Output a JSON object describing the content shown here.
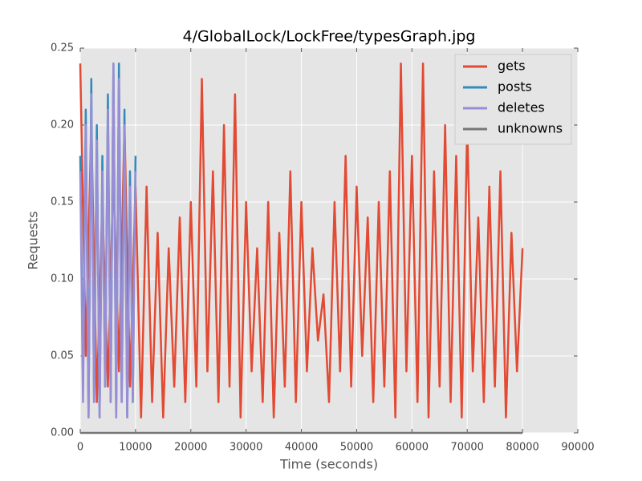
{
  "chart_data": {
    "type": "line",
    "title": "4/GlobalLock/LockFree/typesGraph.jpg",
    "x_label": "Time (seconds)",
    "y_label": "Requests",
    "xlim": [
      0,
      90000
    ],
    "ylim": [
      0,
      0.25
    ],
    "xticks": [
      0,
      10000,
      20000,
      30000,
      40000,
      50000,
      60000,
      70000,
      80000,
      90000
    ],
    "yticks": [
      {
        "value": 0,
        "label": "0.00"
      },
      {
        "value": 0.05,
        "label": "0.05"
      },
      {
        "value": 0.1,
        "label": "0.10"
      },
      {
        "value": 0.15,
        "label": "0.15"
      },
      {
        "value": 0.2,
        "label": "0.20"
      },
      {
        "value": 0.25,
        "label": "0.25"
      }
    ],
    "grid": true,
    "legend": "upper right",
    "series": [
      {
        "name": "gets",
        "color": "#e24a33",
        "x": [
          0,
          1000,
          2000,
          3000,
          4000,
          5000,
          6000,
          7000,
          8000,
          9000,
          10000,
          11000,
          12000,
          13000,
          14000,
          15000,
          16000,
          17000,
          18000,
          19000,
          20000,
          21000,
          22000,
          23000,
          24000,
          25000,
          26000,
          27000,
          28000,
          29000,
          30000,
          31000,
          32000,
          33000,
          34000,
          35000,
          36000,
          37000,
          38000,
          39000,
          40000,
          41000,
          42000,
          43000,
          44000,
          45000,
          46000,
          47000,
          48000,
          49000,
          50000,
          51000,
          52000,
          53000,
          54000,
          55000,
          56000,
          57000,
          58000,
          59000,
          60000,
          61000,
          62000,
          63000,
          64000,
          65000,
          66000,
          67000,
          68000,
          69000,
          70000,
          71000,
          72000,
          73000,
          74000,
          75000,
          76000,
          77000,
          78000,
          79000,
          80000
        ],
        "values": [
          0.24,
          0.05,
          0.2,
          0.02,
          0.15,
          0.03,
          0.17,
          0.04,
          0.2,
          0.03,
          0.16,
          0.01,
          0.16,
          0.02,
          0.13,
          0.01,
          0.12,
          0.03,
          0.14,
          0.02,
          0.15,
          0.03,
          0.23,
          0.04,
          0.17,
          0.02,
          0.2,
          0.03,
          0.22,
          0.01,
          0.15,
          0.04,
          0.12,
          0.02,
          0.15,
          0.01,
          0.13,
          0.03,
          0.17,
          0.02,
          0.15,
          0.04,
          0.12,
          0.06,
          0.09,
          0.02,
          0.15,
          0.04,
          0.18,
          0.03,
          0.16,
          0.05,
          0.14,
          0.02,
          0.15,
          0.03,
          0.17,
          0.01,
          0.24,
          0.04,
          0.18,
          0.02,
          0.24,
          0.01,
          0.17,
          0.03,
          0.2,
          0.02,
          0.18,
          0.01,
          0.2,
          0.04,
          0.14,
          0.02,
          0.16,
          0.03,
          0.17,
          0.01,
          0.13,
          0.04,
          0.12
        ]
      },
      {
        "name": "posts",
        "color": "#348abd",
        "x": [
          0,
          500,
          1000,
          1500,
          2000,
          2500,
          3000,
          3500,
          4000,
          4500,
          5000,
          5500,
          6000,
          6500,
          7000,
          7500,
          8000,
          8500,
          9000,
          9500,
          10000
        ],
        "values": [
          0.18,
          0.03,
          0.21,
          0.01,
          0.23,
          0.02,
          0.2,
          0.01,
          0.18,
          0.03,
          0.22,
          0.02,
          0.24,
          0.01,
          0.24,
          0.02,
          0.21,
          0.01,
          0.17,
          0.02,
          0.18
        ]
      },
      {
        "name": "deletes",
        "color": "#988ed5",
        "x": [
          0,
          500,
          1000,
          1500,
          2000,
          2500,
          3000,
          3500,
          4000,
          4500,
          5000,
          5500,
          6000,
          6500,
          7000,
          7500,
          8000,
          8500,
          9000,
          9500,
          10000
        ],
        "values": [
          0.17,
          0.02,
          0.2,
          0.01,
          0.22,
          0.02,
          0.19,
          0.01,
          0.17,
          0.03,
          0.21,
          0.02,
          0.24,
          0.01,
          0.23,
          0.02,
          0.2,
          0.01,
          0.16,
          0.02,
          0.17
        ]
      },
      {
        "name": "unknowns",
        "color": "#777777",
        "x": [
          0,
          80000
        ],
        "values": [
          0,
          0
        ]
      }
    ]
  }
}
